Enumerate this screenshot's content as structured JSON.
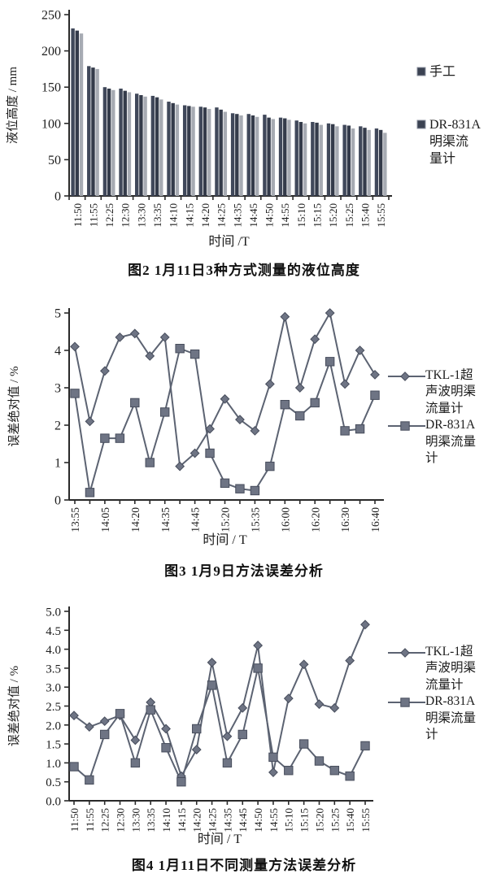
{
  "page_title": "扫描文献图表页：液位高度与误差分析",
  "colors": {
    "axis": "#2a2a2a",
    "text": "#1c1c1c",
    "line": "#5c6372",
    "marker_fill": "#6e7484",
    "marker_stroke": "#474d5c",
    "bars": [
      "#40485a",
      "#343b4a",
      "#a7abb3"
    ],
    "legend_swatch": "#3b4252"
  },
  "chart_data": [
    {
      "id": "figure-2",
      "type": "bar",
      "caption": "图2  1月11日3种方式测量的液位高度",
      "xlabel": "时间 /T",
      "ylabel": "液位高度 / mm",
      "ylim": [
        0,
        250
      ],
      "ytick_labels": [
        "0",
        "50",
        "100",
        "150",
        "200",
        "250"
      ],
      "grid": "off",
      "legend_position": "right",
      "categories": [
        "11:50",
        "11:55",
        "12:25",
        "12:30",
        "13:30",
        "13:35",
        "14:10",
        "14:15",
        "14:20",
        "14:25",
        "14:35",
        "14:45",
        "14:50",
        "14:55",
        "15:10",
        "15:15",
        "15:20",
        "15:25",
        "15:40",
        "15:55"
      ],
      "series": [
        {
          "name": "手工",
          "values": [
            231,
            179,
            150,
            148,
            141,
            138,
            130,
            125,
            123,
            122,
            114,
            113,
            112,
            108,
            104,
            102,
            100,
            98,
            96,
            93
          ]
        },
        {
          "name": "",
          "values": [
            228,
            177,
            148,
            145,
            139,
            136,
            128,
            124,
            122,
            119,
            113,
            111,
            108,
            107,
            102,
            101,
            99,
            97,
            94,
            91
          ]
        },
        {
          "name": "DR-831A明渠流量计",
          "values": [
            224,
            175,
            146,
            143,
            137,
            133,
            126,
            123,
            120,
            116,
            111,
            109,
            106,
            105,
            100,
            98,
            96,
            93,
            91,
            87
          ]
        }
      ],
      "legend": [
        {
          "marker": "swatch",
          "label_lines": [
            "手工"
          ]
        },
        {
          "marker": "swatch",
          "label_lines": [
            "DR-831A",
            "明渠流",
            "量计"
          ]
        }
      ]
    },
    {
      "id": "figure-3",
      "type": "line",
      "caption": "图3  1月9日方法误差分析",
      "xlabel": "时间 / T",
      "ylabel": "误差绝对值 / %",
      "ylim": [
        0,
        5
      ],
      "ytick_labels": [
        "0",
        "1",
        "2",
        "3",
        "4",
        "5"
      ],
      "grid": "off",
      "legend_position": "right",
      "categories": [
        "13:55",
        "",
        "14:05",
        "",
        "14:20",
        "",
        "14:35",
        "",
        "14:45",
        "",
        "15:20",
        "",
        "15:35",
        "",
        "16:00",
        "",
        "16:20",
        "",
        "16:30",
        "",
        "16:40"
      ],
      "series": [
        {
          "name": "TKL-1超声波明渠流量计",
          "marker": "diamond",
          "values": [
            4.1,
            2.1,
            3.45,
            4.35,
            4.45,
            3.85,
            4.35,
            0.9,
            1.25,
            1.9,
            2.7,
            2.15,
            1.85,
            3.1,
            4.9,
            3.0,
            4.3,
            5.0,
            3.1,
            4.0,
            3.35
          ]
        },
        {
          "name": "DR-831A明渠流量计",
          "marker": "square",
          "values": [
            2.85,
            0.2,
            1.65,
            1.65,
            2.6,
            1.0,
            2.35,
            4.05,
            3.9,
            1.25,
            0.45,
            0.3,
            0.25,
            0.9,
            2.55,
            2.25,
            2.6,
            3.7,
            1.85,
            1.9,
            2.8
          ]
        }
      ],
      "legend": [
        {
          "marker": "diamond",
          "label_lines": [
            "TKL-1超",
            "声波明渠",
            "流量计"
          ]
        },
        {
          "marker": "square",
          "label_lines": [
            "DR-831A",
            "明渠流量",
            "计"
          ]
        }
      ]
    },
    {
      "id": "figure-4",
      "type": "line",
      "caption": "图4  1月11日不同测量方法误差分析",
      "xlabel": "时间 / T",
      "ylabel": "误差绝对值 / %",
      "ylim": [
        0,
        5
      ],
      "ytick_labels": [
        "0.0",
        "0.5",
        "1.0",
        "1.5",
        "2.0",
        "2.5",
        "3.0",
        "3.5",
        "4.0",
        "4.5",
        "5.0"
      ],
      "grid": "off",
      "legend_position": "right",
      "categories": [
        "11:50",
        "11:55",
        "12:25",
        "12:30",
        "13:30",
        "13:35",
        "14:10",
        "14:15",
        "14:20",
        "14:25",
        "14:35",
        "14:45",
        "14:50",
        "14:55",
        "15:10",
        "15:15",
        "15:20",
        "15:25",
        "15:40",
        "15:55"
      ],
      "series": [
        {
          "name": "TKL-1超声波明渠流量计",
          "marker": "diamond",
          "values": [
            2.25,
            1.95,
            2.1,
            2.25,
            1.6,
            2.6,
            1.9,
            0.65,
            1.35,
            3.65,
            1.7,
            2.45,
            4.1,
            0.75,
            2.7,
            3.6,
            2.55,
            2.45,
            3.7,
            4.65
          ]
        },
        {
          "name": "DR-831A明渠流量计",
          "marker": "square",
          "values": [
            0.9,
            0.55,
            1.75,
            2.3,
            1.0,
            2.4,
            1.4,
            0.5,
            1.9,
            3.05,
            1.0,
            1.75,
            3.5,
            1.15,
            0.8,
            1.5,
            1.05,
            0.8,
            0.65,
            1.45
          ]
        }
      ],
      "legend": [
        {
          "marker": "diamond",
          "label_lines": [
            "TKL-1超",
            "声波明渠",
            "流量计"
          ]
        },
        {
          "marker": "square",
          "label_lines": [
            "DR-831A",
            "明渠流量",
            "计"
          ]
        }
      ]
    }
  ]
}
